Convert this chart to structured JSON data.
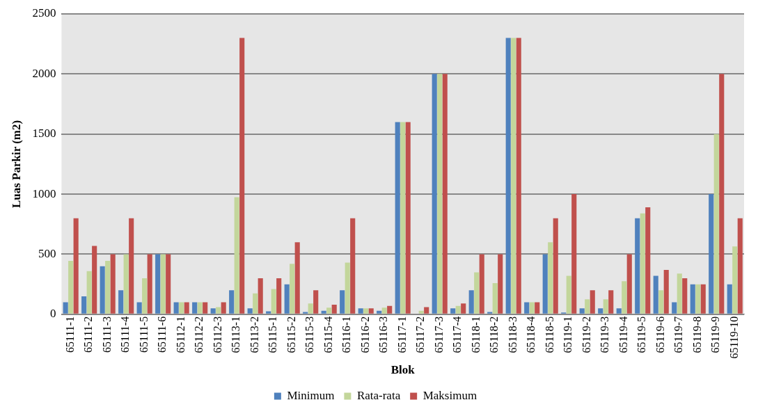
{
  "chart_data": {
    "type": "bar",
    "xlabel": "Blok",
    "ylabel": "Luas Parkir (m2)",
    "categories": [
      "65111-1",
      "65111-2",
      "65111-3",
      "65111-4",
      "65111-5",
      "65111-6",
      "65112-1",
      "65112-2",
      "65112-3",
      "65113-1",
      "65113-2",
      "65115-1",
      "65115-2",
      "65115-3",
      "65115-4",
      "65116-1",
      "65116-2",
      "65116-3",
      "65117-1",
      "65117-2",
      "65117-3",
      "65117-4",
      "65118-1",
      "65118-2",
      "65118-3",
      "65118-4",
      "65118-5",
      "65119-1",
      "65119-2",
      "65119-3",
      "65119-4",
      "65119-5",
      "65119-6",
      "65119-7",
      "65119-8",
      "65119-9",
      "65119-10"
    ],
    "series": [
      {
        "name": "Minimum",
        "color": "#4f81bd",
        "values": [
          100,
          150,
          400,
          200,
          100,
          500,
          100,
          100,
          50,
          200,
          50,
          25,
          250,
          20,
          30,
          200,
          50,
          30,
          1600,
          0,
          2000,
          50,
          200,
          20,
          2300,
          100,
          500,
          15,
          50,
          50,
          50,
          800,
          320,
          100,
          250,
          1000,
          250
        ]
      },
      {
        "name": "Rata-rata",
        "color": "#c3d69b",
        "values": [
          445,
          360,
          445,
          500,
          300,
          500,
          100,
          100,
          60,
          975,
          175,
          210,
          420,
          90,
          55,
          430,
          50,
          55,
          1600,
          30,
          2000,
          70,
          350,
          260,
          2300,
          100,
          600,
          320,
          125,
          125,
          275,
          840,
          200,
          340,
          250,
          1500,
          565
        ]
      },
      {
        "name": "Maksimum",
        "color": "#c0504d",
        "values": [
          800,
          570,
          500,
          800,
          500,
          500,
          100,
          100,
          100,
          2300,
          300,
          300,
          600,
          200,
          80,
          800,
          50,
          70,
          1600,
          60,
          2000,
          90,
          500,
          500,
          2300,
          100,
          800,
          1000,
          200,
          200,
          500,
          890,
          370,
          300,
          250,
          2000,
          800
        ]
      }
    ],
    "ylim": [
      0,
      2500
    ],
    "yticks": [
      0,
      500,
      1000,
      1500,
      2000,
      2500
    ],
    "grid": "y",
    "legend": "bottom"
  }
}
